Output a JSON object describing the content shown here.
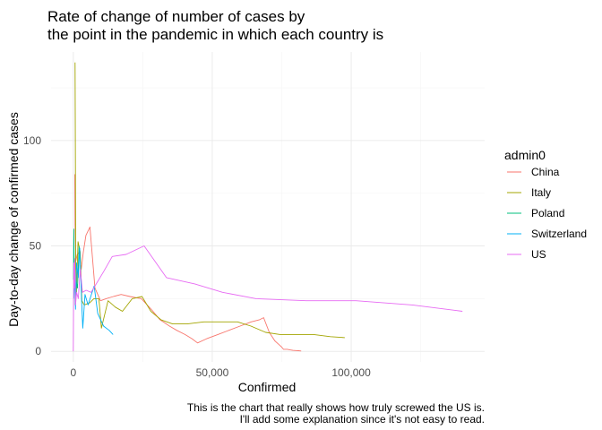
{
  "chart_data": {
    "type": "line",
    "title_lines": [
      "Rate of change of number of cases by",
      "the point in the pandemic in which each country is"
    ],
    "xlabel": "Confirmed",
    "ylabel": "Day-to-day change of confirmed cases",
    "caption_lines": [
      "This is the chart that really shows how truly screwed the US is.",
      "I'll add some explanation since it's not easy to read."
    ],
    "xlim": [
      -8000,
      148000
    ],
    "ylim": [
      -5,
      142
    ],
    "x_ticks": [
      0,
      50000,
      100000
    ],
    "x_tick_labels": [
      "0",
      "50,000",
      "100,000"
    ],
    "x_minor": [
      25000,
      75000,
      125000
    ],
    "y_ticks": [
      0,
      50,
      100
    ],
    "y_tick_labels": [
      "0",
      "50",
      "100"
    ],
    "y_minor": [
      25,
      75,
      125
    ],
    "grid": true,
    "legend": {
      "title": "admin0",
      "position": "right"
    },
    "series": [
      {
        "name": "China",
        "color": "#F8766D",
        "x": [
          548,
          639,
          916,
          1399,
          2062,
          2863,
          3600,
          4550,
          5987,
          7800,
          9800,
          11800,
          14400,
          17200,
          20400,
          24500,
          28000,
          31200,
          34600,
          37200,
          40200,
          42700,
          44700,
          48000,
          52000,
          56000,
          60000,
          64000,
          67000,
          68500,
          70500,
          72500,
          74200,
          75000,
          75600,
          76300,
          77000,
          78000,
          79000,
          80000,
          81000,
          82000
        ],
        "y": [
          84,
          60,
          43,
          46,
          47,
          39,
          47,
          55,
          59,
          30,
          24,
          25,
          26,
          27,
          26,
          25,
          20,
          15,
          12,
          10,
          8,
          6,
          4,
          6,
          8,
          10,
          12,
          14,
          15,
          16,
          9,
          5,
          3,
          2,
          1,
          1,
          1,
          0.7,
          0.5,
          0.4,
          0.3,
          0.2
        ]
      },
      {
        "name": "Italy",
        "color": "#A3A500",
        "x": [
          650,
          890,
          1130,
          1700,
          2500,
          3100,
          3900,
          5900,
          7400,
          9200,
          10100,
          12500,
          15100,
          17700,
          21200,
          24700,
          27900,
          31500,
          35700,
          41000,
          47000,
          53600,
          59100,
          63900,
          69200,
          74400,
          80600,
          86500,
          92500,
          97700
        ],
        "y": [
          137,
          39,
          27,
          52,
          47,
          24,
          22,
          23,
          25,
          25,
          11,
          24,
          21,
          19,
          25,
          26,
          19,
          15,
          13,
          13,
          14,
          14,
          14,
          12,
          9,
          8,
          8,
          8,
          7,
          6.5
        ]
      },
      {
        "name": "Poland",
        "color": "#00BF7D",
        "x": [
          100,
          180,
          280,
          450,
          700,
          1100,
          1500,
          2100
        ],
        "y": [
          34,
          58,
          45,
          40,
          22,
          33,
          30,
          50
        ]
      },
      {
        "name": "Switzerland",
        "color": "#00B0F6",
        "x": [
          200,
          500,
          800,
          1200,
          1800,
          2300,
          3000,
          3400,
          4200,
          5300,
          6500,
          7500,
          8800,
          10900,
          12900,
          14300
        ],
        "y": [
          25,
          38,
          20,
          42,
          35,
          49,
          24,
          11,
          27,
          22,
          27,
          31,
          18,
          12,
          10,
          8
        ]
      },
      {
        "name": "US",
        "color": "#E76BF3",
        "x": [
          0,
          200,
          350,
          550,
          800,
          1200,
          1800,
          2500,
          3300,
          4600,
          6400,
          8700,
          11000,
          14000,
          19000,
          25500,
          33500,
          43700,
          53700,
          65800,
          83800,
          101700,
          122000,
          140000
        ],
        "y": [
          0,
          42,
          30,
          44,
          22,
          28,
          25,
          39,
          28,
          29,
          28,
          33,
          38,
          45,
          46,
          50,
          35,
          32,
          28,
          25,
          24,
          24,
          22,
          19
        ]
      }
    ]
  }
}
